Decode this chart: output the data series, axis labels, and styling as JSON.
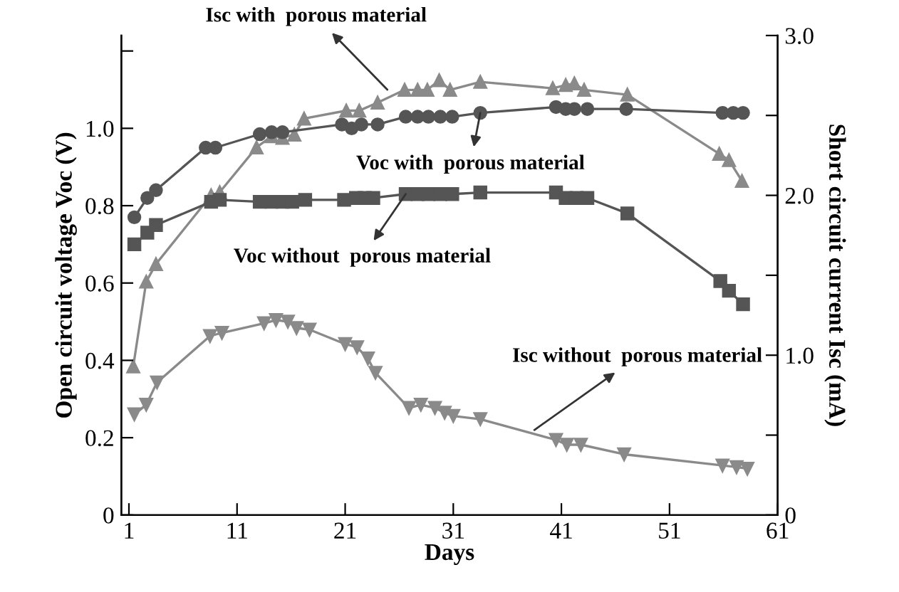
{
  "chart_data": {
    "type": "line",
    "xlabel": "Days",
    "ylabel": "Open circuit voltage Voc (V)",
    "y2label": "Short circuit current Isc (mA)",
    "xlim": [
      0.3,
      61
    ],
    "xticks": [
      1,
      11,
      21,
      31,
      41,
      51,
      61
    ],
    "ylim": [
      0,
      1.24
    ],
    "yticks": [
      0,
      0.2,
      0.4,
      0.6,
      0.8,
      {
        "value": 1,
        "label": "1.0"
      },
      {
        "value": 1.2,
        "label": null
      }
    ],
    "y2lim": [
      0,
      3
    ],
    "y2ticks": [
      0,
      {
        "value": 0.5,
        "label": null
      },
      {
        "value": 1,
        "label": "1.0"
      },
      {
        "value": 1.5,
        "label": null
      },
      {
        "value": 2,
        "label": "2.0"
      },
      {
        "value": 2.5,
        "label": null
      },
      {
        "value": 3,
        "label": "3.0"
      }
    ],
    "grid": false,
    "series": [
      {
        "color": "#555555",
        "marker": "circle",
        "x": [
          1.5,
          2.7,
          3.5,
          8.1,
          9,
          13.1,
          14.2,
          15.2,
          20.7,
          21.6,
          22.5,
          24,
          26.6,
          27.7,
          28.7,
          29.8,
          30.9,
          33.5,
          40.5,
          41.4,
          42.2,
          43.4,
          47,
          55.9,
          56.9,
          57.8
        ],
        "values": [
          0.77,
          0.82,
          0.84,
          0.95,
          0.95,
          0.985,
          0.99,
          0.99,
          1.01,
          1.0,
          1.01,
          1.01,
          1.03,
          1.03,
          1.03,
          1.03,
          1.03,
          1.04,
          1.055,
          1.05,
          1.05,
          1.05,
          1.05,
          1.04,
          1.04,
          1.04
        ]
      },
      {
        "color": "#8a8a8a",
        "marker": "triangle",
        "axis": "y2",
        "x": [
          1.4,
          2.6,
          3.5,
          8.6,
          9.4,
          12.8,
          14.2,
          15.2,
          16.3,
          17.2,
          21.1,
          22.3,
          24,
          26.5,
          27.7,
          28.6,
          29.7,
          30.7,
          33.5,
          40.2,
          41.4,
          42.2,
          43.1,
          47.1,
          55.6,
          56.5,
          57.7
        ],
        "values": [
          0.93,
          1.46,
          1.57,
          2.0,
          2.02,
          2.3,
          2.37,
          2.36,
          2.38,
          2.48,
          2.53,
          2.53,
          2.58,
          2.66,
          2.66,
          2.66,
          2.72,
          2.66,
          2.71,
          2.67,
          2.69,
          2.7,
          2.66,
          2.63,
          2.26,
          2.22,
          2.09
        ]
      },
      {
        "color": "#555555",
        "marker": "square",
        "x": [
          1.5,
          2.7,
          3.5,
          8.6,
          9.4,
          13.1,
          14.2,
          15.2,
          16.1,
          17.3,
          20.9,
          22,
          22.8,
          23.6,
          26.6,
          27.7,
          28.7,
          29.8,
          30.9,
          33.5,
          40.5,
          41.4,
          42.4,
          43.4,
          47.1,
          55.7,
          56.5,
          57.8
        ],
        "values": [
          0.7,
          0.73,
          0.75,
          0.81,
          0.815,
          0.81,
          0.81,
          0.81,
          0.81,
          0.815,
          0.815,
          0.82,
          0.82,
          0.82,
          0.83,
          0.83,
          0.83,
          0.83,
          0.83,
          0.834,
          0.834,
          0.82,
          0.82,
          0.82,
          0.78,
          0.605,
          0.58,
          0.545
        ]
      },
      {
        "color": "#8a8a8a",
        "marker": "triangle_down",
        "axis": "y2",
        "x": [
          1.5,
          2.6,
          3.6,
          8.5,
          9.6,
          13.5,
          14.6,
          15.7,
          16.5,
          17.7,
          21,
          22.1,
          23.1,
          23.8,
          26.9,
          28,
          29.3,
          30.2,
          31,
          33.5,
          40.5,
          41.5,
          42.8,
          46.8,
          55.9,
          57.2,
          58.2
        ],
        "values": [
          0.63,
          0.69,
          0.83,
          1.12,
          1.14,
          1.2,
          1.22,
          1.21,
          1.17,
          1.16,
          1.07,
          1.05,
          0.98,
          0.89,
          0.67,
          0.69,
          0.67,
          0.64,
          0.62,
          0.6,
          0.47,
          0.44,
          0.44,
          0.38,
          0.31,
          0.3,
          0.29
        ]
      }
    ],
    "annotations": [
      {
        "text": "Isc with  porous material",
        "x": 24.9,
        "y": 1.1
      },
      {
        "text": "Voc with  porous material",
        "x": 33.5,
        "y": 1.04
      },
      {
        "text": "Voc without  porous material",
        "x": 26.6,
        "y": 0.83
      },
      {
        "text": "Isc without  porous material",
        "x": 38.5,
        "y": 0.22
      }
    ]
  }
}
